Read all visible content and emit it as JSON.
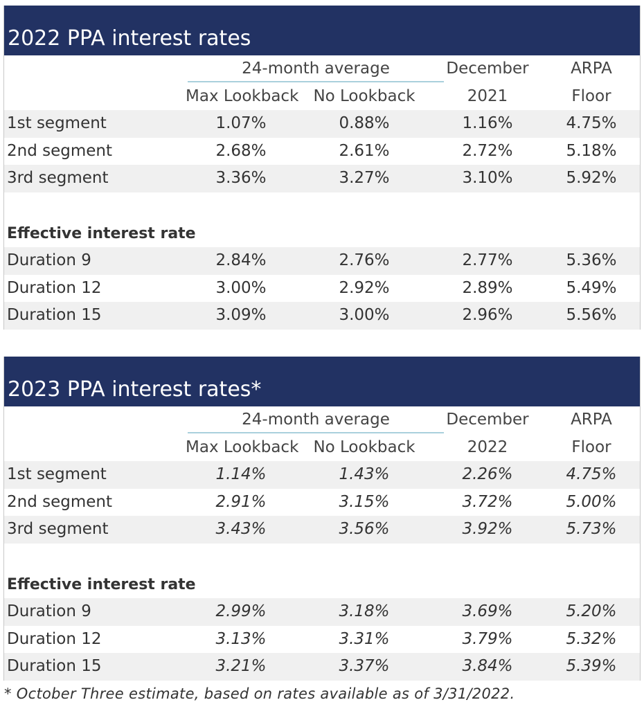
{
  "table2022": {
    "title": "2022 PPA interest rates",
    "group_header": "24-month average",
    "col_max": "Max Lookback",
    "col_no": "No Lookback",
    "col_dec_1": "December",
    "col_dec_2": "2021",
    "col_arpa_1": "ARPA",
    "col_arpa_2": "Floor",
    "segments": [
      {
        "label": "1st segment",
        "max": "1.07%",
        "no": "0.88%",
        "dec": "1.16%",
        "arpa": "4.75%"
      },
      {
        "label": "2nd segment",
        "max": "2.68%",
        "no": "2.61%",
        "dec": "2.72%",
        "arpa": "5.18%"
      },
      {
        "label": "3rd segment",
        "max": "3.36%",
        "no": "3.27%",
        "dec": "3.10%",
        "arpa": "5.92%"
      }
    ],
    "effective_label": "Effective interest rate",
    "durations": [
      {
        "label": "Duration 9",
        "max": "2.84%",
        "no": "2.76%",
        "dec": "2.77%",
        "arpa": "5.36%"
      },
      {
        "label": "Duration 12",
        "max": "3.00%",
        "no": "2.92%",
        "dec": "2.89%",
        "arpa": "5.49%"
      },
      {
        "label": "Duration 15",
        "max": "3.09%",
        "no": "3.00%",
        "dec": "2.96%",
        "arpa": "5.56%"
      }
    ]
  },
  "table2023": {
    "title": "2023 PPA interest rates*",
    "group_header": "24-month average",
    "col_max": "Max Lookback",
    "col_no": "No Lookback",
    "col_dec_1": "December",
    "col_dec_2": "2022",
    "col_arpa_1": "ARPA",
    "col_arpa_2": "Floor",
    "segments": [
      {
        "label": "1st segment",
        "max": "1.14%",
        "no": "1.43%",
        "dec": "2.26%",
        "arpa": "4.75%"
      },
      {
        "label": "2nd segment",
        "max": "2.91%",
        "no": "3.15%",
        "dec": "3.72%",
        "arpa": "5.00%"
      },
      {
        "label": "3rd segment",
        "max": "3.43%",
        "no": "3.56%",
        "dec": "3.92%",
        "arpa": "5.73%"
      }
    ],
    "effective_label": "Effective interest rate",
    "durations": [
      {
        "label": "Duration 9",
        "max": "2.99%",
        "no": "3.18%",
        "dec": "3.69%",
        "arpa": "5.20%"
      },
      {
        "label": "Duration 12",
        "max": "3.13%",
        "no": "3.31%",
        "dec": "3.79%",
        "arpa": "5.32%"
      },
      {
        "label": "Duration 15",
        "max": "3.21%",
        "no": "3.37%",
        "dec": "3.84%",
        "arpa": "5.39%"
      }
    ]
  },
  "footnote": "* October Three estimate, based on rates available as of 3/31/2022.",
  "colors": {
    "title_bar": "#223263",
    "row_shade": "#f0f0f0",
    "group_rule": "#a9d0dc"
  }
}
